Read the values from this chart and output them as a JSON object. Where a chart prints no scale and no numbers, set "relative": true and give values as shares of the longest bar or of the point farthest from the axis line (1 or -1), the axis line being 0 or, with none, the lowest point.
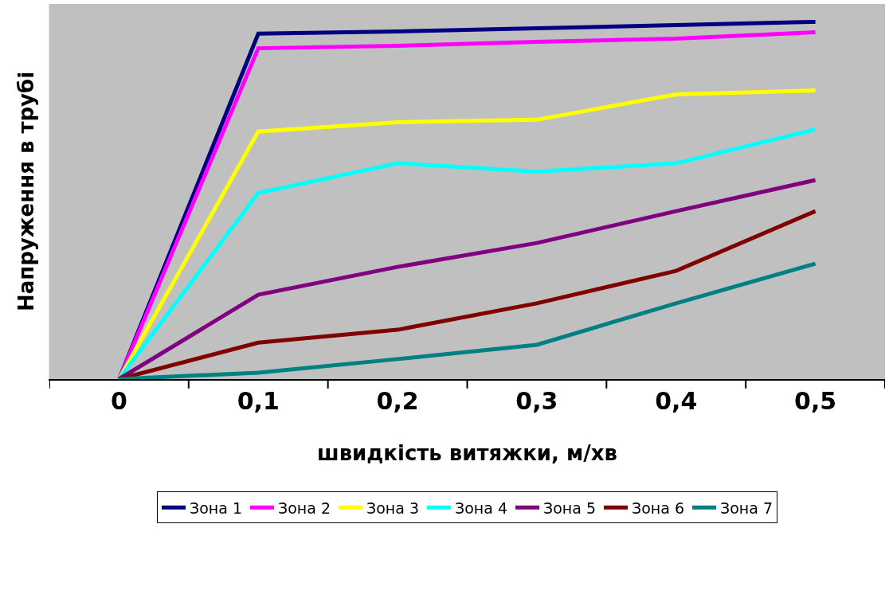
{
  "chart_data": {
    "type": "line",
    "relative": true,
    "xlabel": "швидкість витяжки, м/хв",
    "ylabel": "Напруження в трубі",
    "categories": [
      "0",
      "0,1",
      "0,2",
      "0,3",
      "0,4",
      "0,5"
    ],
    "series": [
      {
        "name": "Зона 1",
        "color": "#000080",
        "values": [
          0,
          0.967,
          0.973,
          0.982,
          0.991,
          1
        ]
      },
      {
        "name": "Зона 2",
        "color": "#ff00ff",
        "values": [
          0,
          0.926,
          0.933,
          0.944,
          0.953,
          0.971
        ]
      },
      {
        "name": "Зона 3",
        "color": "#ffff00",
        "values": [
          0,
          0.693,
          0.719,
          0.726,
          0.797,
          0.808
        ]
      },
      {
        "name": "Зона 4",
        "color": "#00ffff",
        "values": [
          0,
          0.521,
          0.604,
          0.581,
          0.604,
          0.699
        ]
      },
      {
        "name": "Зона 5",
        "color": "#800080",
        "values": [
          0,
          0.236,
          0.314,
          0.381,
          0.47,
          0.557
        ]
      },
      {
        "name": "Зона 6",
        "color": "#800000",
        "values": [
          0,
          0.102,
          0.138,
          0.212,
          0.303,
          0.47
        ]
      },
      {
        "name": "Зона 7",
        "color": "#008080",
        "values": [
          0,
          0.018,
          0.056,
          0.096,
          0.212,
          0.323
        ]
      }
    ],
    "grid": false,
    "legend": "bottom",
    "marker": "none",
    "line_style": "solid"
  }
}
